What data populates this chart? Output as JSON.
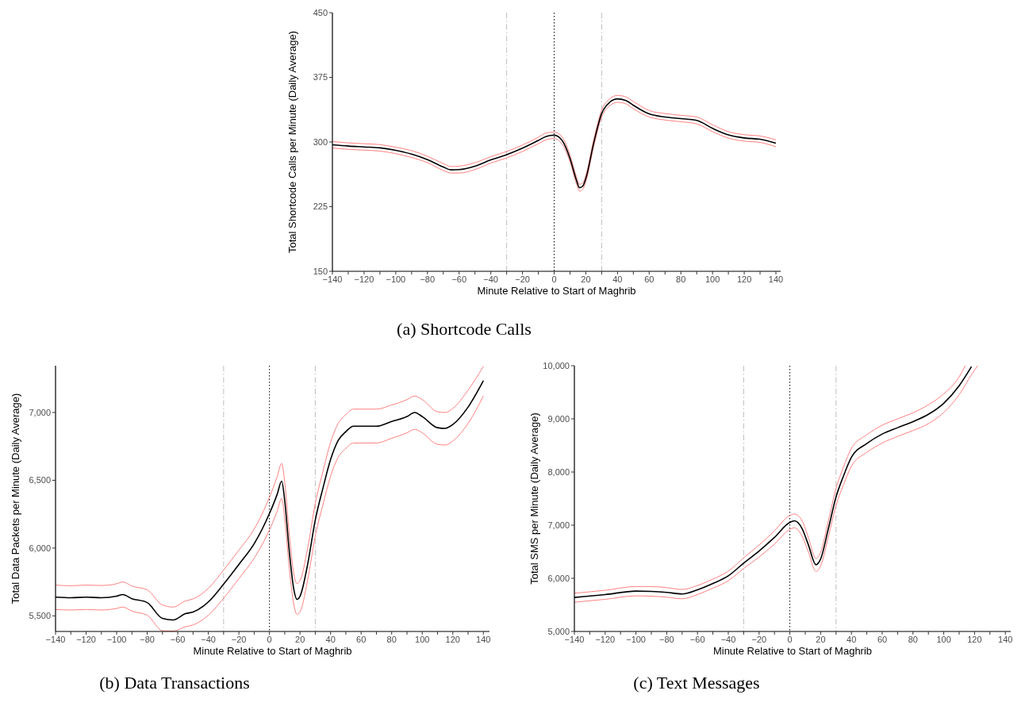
{
  "chart_data": [
    {
      "type": "line",
      "title": "(a) Shortcode Calls",
      "xlabel": "Minute Relative to Start of Maghrib",
      "ylabel": "Total Shortcode Calls per Minute (Daily Average)",
      "xlim": [
        -140,
        143
      ],
      "ylim": [
        150,
        450
      ],
      "xticks": [
        {
          "value": -140,
          "label": "−140"
        },
        {
          "value": -130,
          "label": null
        },
        {
          "value": -120,
          "label": "−120"
        },
        {
          "value": -110,
          "label": null
        },
        {
          "value": -100,
          "label": "−100"
        },
        {
          "value": -90,
          "label": null
        },
        {
          "value": -80,
          "label": "−80"
        },
        {
          "value": -70,
          "label": null
        },
        {
          "value": -60,
          "label": "−60"
        },
        {
          "value": -50,
          "label": null
        },
        {
          "value": -40,
          "label": "−40"
        },
        {
          "value": -30,
          "label": null
        },
        {
          "value": -20,
          "label": "−20"
        },
        {
          "value": -10,
          "label": null
        },
        0,
        {
          "value": 10,
          "label": null
        },
        20,
        {
          "value": 30,
          "label": null
        },
        40,
        {
          "value": 50,
          "label": null
        },
        60,
        {
          "value": 70,
          "label": null
        },
        80,
        {
          "value": 90,
          "label": null
        },
        100,
        {
          "value": 110,
          "label": null
        },
        120,
        {
          "value": 130,
          "label": null
        },
        140
      ],
      "yticks": [
        150,
        225,
        300,
        375,
        450
      ],
      "ref_lines": [
        {
          "axis": "x",
          "value": -30,
          "color": "#bebebe",
          "line_style": "dashed"
        },
        {
          "axis": "x",
          "value": 0,
          "color": "#000000",
          "line_style": "dotted"
        },
        {
          "axis": "x",
          "value": 30,
          "color": "#bebebe",
          "line_style": "dashed"
        }
      ],
      "series": [
        {
          "color": "#ff8080",
          "x": [
            -140,
            -130,
            -120,
            -110,
            -100,
            -90,
            -80,
            -70,
            -65,
            -60,
            -50,
            -40,
            -30,
            -20,
            -10,
            -5,
            0,
            5,
            10,
            14,
            16,
            18,
            20,
            25,
            30,
            35,
            40,
            45,
            50,
            60,
            70,
            80,
            90,
            100,
            110,
            120,
            130,
            140
          ],
          "values": [
            300.5,
            299,
            298,
            297,
            294,
            290,
            283.5,
            275,
            271.5,
            272,
            276,
            283,
            289,
            296.5,
            305.5,
            310.5,
            311.5,
            306,
            285,
            260,
            251,
            252.5,
            261.5,
            303,
            337,
            350,
            354,
            352.5,
            347,
            336.5,
            333,
            331,
            329,
            320,
            312,
            308.5,
            307,
            302.5
          ]
        },
        {
          "color": "#ff8080",
          "x": [
            -140,
            -130,
            -120,
            -110,
            -100,
            -90,
            -80,
            -70,
            -65,
            -60,
            -50,
            -40,
            -30,
            -20,
            -10,
            -5,
            0,
            5,
            10,
            14,
            16,
            18,
            20,
            25,
            30,
            35,
            40,
            45,
            50,
            60,
            70,
            80,
            90,
            100,
            110,
            120,
            130,
            140
          ],
          "values": [
            293,
            291.5,
            290.5,
            289.5,
            286.5,
            282,
            276,
            267,
            264,
            264,
            268,
            275.5,
            281.5,
            289,
            298,
            302.5,
            304,
            297.5,
            277,
            252,
            243,
            245,
            254,
            295,
            329,
            342,
            346,
            344.5,
            338.5,
            329,
            325.5,
            323.5,
            321,
            312,
            304.5,
            301,
            299.5,
            294.5
          ]
        },
        {
          "color": "#000000",
          "x": [
            -140,
            -130,
            -120,
            -110,
            -100,
            -90,
            -80,
            -70,
            -65,
            -60,
            -50,
            -40,
            -30,
            -20,
            -10,
            -5,
            0,
            5,
            10,
            14,
            16,
            18,
            20,
            25,
            30,
            35,
            40,
            45,
            50,
            60,
            70,
            80,
            90,
            100,
            110,
            120,
            130,
            140
          ],
          "values": [
            296.8,
            295.3,
            294.3,
            293.2,
            290.3,
            286,
            279.6,
            271,
            267.7,
            268,
            272,
            279.2,
            285.3,
            292.8,
            301.8,
            306.5,
            307.9,
            301.8,
            281,
            256,
            247,
            248.7,
            257.7,
            299,
            333,
            346,
            350,
            348.4,
            342.6,
            332.6,
            329,
            327.2,
            325,
            315.8,
            308.2,
            304.7,
            303.2,
            298.6
          ]
        }
      ]
    },
    {
      "type": "line",
      "title": "(b) Data Transactions",
      "xlabel": "Minute Relative to Start of Maghrib",
      "ylabel": "Total Data Packets per Minute (Daily Average)",
      "xlim": [
        -140,
        144
      ],
      "ylim": [
        5385,
        7345
      ],
      "xticks": [
        {
          "value": -140,
          "label": "−140"
        },
        {
          "value": -130,
          "label": null
        },
        {
          "value": -120,
          "label": "−120"
        },
        {
          "value": -110,
          "label": null
        },
        {
          "value": -100,
          "label": "−100"
        },
        {
          "value": -90,
          "label": null
        },
        {
          "value": -80,
          "label": "−80"
        },
        {
          "value": -70,
          "label": null
        },
        {
          "value": -60,
          "label": "−60"
        },
        {
          "value": -50,
          "label": null
        },
        {
          "value": -40,
          "label": "−40"
        },
        {
          "value": -30,
          "label": null
        },
        {
          "value": -20,
          "label": "−20"
        },
        {
          "value": -10,
          "label": null
        },
        0,
        {
          "value": 10,
          "label": null
        },
        20,
        {
          "value": 30,
          "label": null
        },
        40,
        {
          "value": 50,
          "label": null
        },
        60,
        {
          "value": 70,
          "label": null
        },
        80,
        {
          "value": 90,
          "label": null
        },
        100,
        {
          "value": 110,
          "label": null
        },
        120,
        {
          "value": 130,
          "label": null
        },
        140
      ],
      "yticks": [
        {
          "value": 5500,
          "label": "5,500"
        },
        {
          "value": 6000,
          "label": "6,000"
        },
        {
          "value": 6500,
          "label": "6,500"
        },
        {
          "value": 7000,
          "label": "7,000"
        }
      ],
      "ref_lines": [
        {
          "axis": "x",
          "value": -30,
          "color": "#bebebe",
          "line_style": "dashed"
        },
        {
          "axis": "x",
          "value": 0,
          "color": "#000000",
          "line_style": "dotted"
        },
        {
          "axis": "x",
          "value": 30,
          "color": "#bebebe",
          "line_style": "dashed"
        }
      ],
      "series": [
        {
          "color": "#ff8080",
          "x": [
            -140,
            -130,
            -120,
            -110,
            -100,
            -96,
            -90,
            -80,
            -70,
            -63,
            -55,
            -50,
            -40,
            -30,
            -20,
            -10,
            0,
            5,
            8,
            10,
            13,
            16,
            18,
            20,
            25,
            30,
            35,
            40,
            45,
            50,
            55,
            60,
            70,
            80,
            90,
            95,
            100,
            110,
            115,
            120,
            130,
            140
          ],
          "values": [
            5727,
            5722,
            5727,
            5724,
            5737,
            5750,
            5720,
            5692,
            5580,
            5565,
            5610,
            5625,
            5703,
            5838,
            5985,
            6140,
            6375,
            6525,
            6625,
            6485,
            6100,
            5805,
            5739,
            5760,
            6000,
            6330,
            6565,
            6780,
            6920,
            6985,
            7025,
            7025,
            7025,
            7055,
            7095,
            7122,
            7095,
            7005,
            7000,
            7030,
            7165,
            7340
          ]
        },
        {
          "color": "#ff8080",
          "x": [
            -140,
            -130,
            -120,
            -110,
            -100,
            -96,
            -90,
            -80,
            -70,
            -63,
            -55,
            -50,
            -40,
            -30,
            -20,
            -10,
            0,
            5,
            8,
            10,
            13,
            16,
            18,
            20,
            25,
            30,
            35,
            40,
            45,
            50,
            55,
            60,
            70,
            80,
            90,
            95,
            100,
            110,
            115,
            120,
            130,
            140
          ],
          "values": [
            5547,
            5543,
            5547,
            5543,
            5555,
            5565,
            5535,
            5505,
            5390,
            5388,
            5420,
            5433,
            5505,
            5630,
            5775,
            5925,
            6135,
            6270,
            6367,
            6215,
            5850,
            5580,
            5512,
            5530,
            5765,
            6090,
            6320,
            6530,
            6670,
            6735,
            6775,
            6775,
            6775,
            6810,
            6850,
            6876,
            6850,
            6765,
            6760,
            6790,
            6920,
            7122
          ]
        },
        {
          "color": "#000000",
          "x": [
            -140,
            -130,
            -120,
            -110,
            -100,
            -96,
            -90,
            -80,
            -70,
            -63,
            -55,
            -50,
            -40,
            -30,
            -20,
            -10,
            0,
            5,
            8,
            10,
            13,
            16,
            18,
            20,
            25,
            30,
            35,
            40,
            45,
            50,
            55,
            60,
            70,
            80,
            90,
            95,
            100,
            110,
            115,
            120,
            130,
            140
          ],
          "values": [
            5638,
            5634,
            5638,
            5634,
            5645,
            5657,
            5627,
            5598,
            5481,
            5470,
            5516,
            5528,
            5603,
            5734,
            5880,
            6032,
            6255,
            6395,
            6494,
            6349,
            5973,
            5692,
            5622,
            5645,
            5880,
            6208,
            6442,
            6653,
            6794,
            6859,
            6899,
            6899,
            6899,
            6934,
            6970,
            7000,
            6970,
            6888,
            6883,
            6911,
            7040,
            7234
          ]
        }
      ]
    },
    {
      "type": "line",
      "title": "(c) Text Messages",
      "xlabel": "Minute Relative to Start of Maghrib",
      "ylabel": "Total SMS per Minute (Daily Average)",
      "xlim": [
        -140,
        143.5
      ],
      "ylim": [
        5000,
        10000
      ],
      "xticks": [
        {
          "value": -140,
          "label": "−140"
        },
        {
          "value": -130,
          "label": null
        },
        {
          "value": -120,
          "label": "−120"
        },
        {
          "value": -110,
          "label": null
        },
        {
          "value": -100,
          "label": "−100"
        },
        {
          "value": -90,
          "label": null
        },
        {
          "value": -80,
          "label": "−80"
        },
        {
          "value": -70,
          "label": null
        },
        {
          "value": -60,
          "label": "−60"
        },
        {
          "value": -50,
          "label": null
        },
        {
          "value": -40,
          "label": "−40"
        },
        {
          "value": -30,
          "label": null
        },
        {
          "value": -20,
          "label": "−20"
        },
        {
          "value": -10,
          "label": null
        },
        0,
        {
          "value": 10,
          "label": null
        },
        20,
        {
          "value": 30,
          "label": null
        },
        40,
        {
          "value": 50,
          "label": null
        },
        60,
        {
          "value": 70,
          "label": null
        },
        80,
        {
          "value": 90,
          "label": null
        },
        100,
        {
          "value": 110,
          "label": null
        },
        120,
        {
          "value": 130,
          "label": null
        },
        140
      ],
      "yticks": [
        {
          "value": 5000,
          "label": "5,000"
        },
        {
          "value": 6000,
          "label": "6,000"
        },
        {
          "value": 7000,
          "label": "7,000"
        },
        {
          "value": 8000,
          "label": "8,000"
        },
        {
          "value": 9000,
          "label": "9,000"
        },
        {
          "value": 10000,
          "label": "10,000"
        }
      ],
      "ref_lines": [
        {
          "axis": "x",
          "value": -30,
          "color": "#bebebe",
          "line_style": "dashed"
        },
        {
          "axis": "x",
          "value": 0,
          "color": "#000000",
          "line_style": "dotted"
        },
        {
          "axis": "x",
          "value": 30,
          "color": "#bebebe",
          "line_style": "dashed"
        }
      ],
      "series": [
        {
          "color": "#ff8080",
          "x": [
            -140,
            -120,
            -100,
            -90,
            -80,
            -70,
            -60,
            -50,
            -40,
            -30,
            -20,
            -10,
            0,
            3,
            8,
            12,
            17,
            20,
            25,
            30,
            35,
            40,
            50,
            60,
            70,
            80,
            90,
            100,
            110,
            114
          ],
          "values": [
            5720,
            5775,
            5845,
            5845,
            5825,
            5790,
            5865,
            5985,
            6135,
            6385,
            6625,
            6895,
            7185,
            7210,
            7080,
            6770,
            6375,
            6490,
            7080,
            7690,
            8105,
            8445,
            8700,
            8880,
            9000,
            9115,
            9265,
            9470,
            9790,
            10000
          ]
        },
        {
          "color": "#ff8080",
          "x": [
            -140,
            -120,
            -100,
            -90,
            -80,
            -70,
            -60,
            -50,
            -40,
            -30,
            -20,
            -10,
            0,
            3,
            8,
            12,
            17,
            20,
            25,
            30,
            35,
            40,
            50,
            60,
            70,
            80,
            90,
            100,
            110,
            118,
            122
          ],
          "values": [
            5550,
            5605,
            5670,
            5665,
            5645,
            5615,
            5695,
            5815,
            5955,
            6185,
            6400,
            6645,
            6920,
            6950,
            6790,
            6500,
            6130,
            6235,
            6780,
            7370,
            7770,
            8110,
            8370,
            8545,
            8670,
            8780,
            8910,
            9120,
            9455,
            9830,
            10000
          ]
        },
        {
          "color": "#000000",
          "x": [
            -140,
            -120,
            -100,
            -90,
            -80,
            -70,
            -60,
            -50,
            -40,
            -30,
            -20,
            -10,
            0,
            3,
            8,
            12,
            17,
            20,
            25,
            30,
            35,
            40,
            50,
            60,
            70,
            80,
            90,
            100,
            110,
            118
          ],
          "values": [
            5640,
            5694,
            5760,
            5754,
            5736,
            5706,
            5784,
            5903,
            6047,
            6286,
            6513,
            6770,
            7052,
            7081,
            6932,
            6633,
            6256,
            6364,
            6932,
            7530,
            7937,
            8278,
            8535,
            8714,
            8834,
            8947,
            9085,
            9294,
            9623,
            9982
          ]
        }
      ]
    }
  ]
}
